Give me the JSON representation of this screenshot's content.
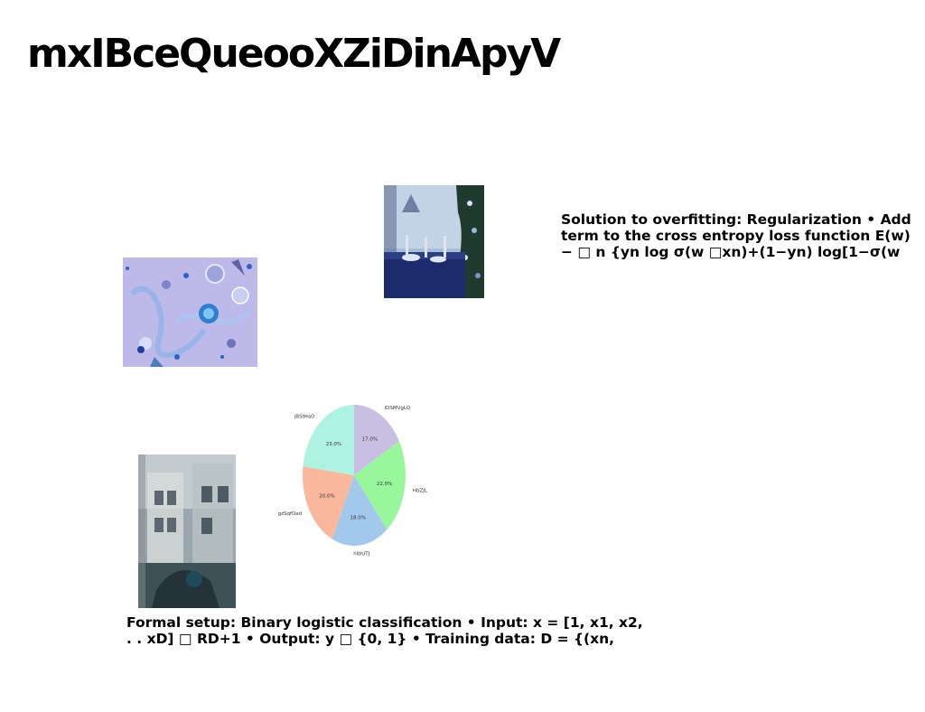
{
  "slide": {
    "title": "mxIBceQueooXZiDinApyV",
    "text_right": [
      "Solution to overfitting: Regularization • Add",
      "term to the cross entropy loss function E(w)",
      "− □ n {yn log σ(w □xn)+(1−yn) log[1−σ(w"
    ],
    "text_bottom": [
      "Formal setup: Binary logistic classification • Input: x = [1, x1, x2,",
      ". . xD] □ RD+1 • Output: y □ {0, 1} • Training data: D = {(xn,"
    ]
  },
  "images": {
    "ornaments": "photo of blue and silver Christmas ornaments on lavender background",
    "table": "photo of blue festive table setting beside a Christmas tree",
    "street": "blurred photo of a street scene with a building"
  },
  "chart_data": {
    "type": "pie",
    "categories": [
      "lDSMVgLQ",
      "HbZJL",
      "hWUTJ",
      "gzSqfOad",
      "jBStHaD"
    ],
    "values": [
      17.0,
      22.0,
      18.0,
      20.0,
      23.0
    ],
    "value_labels": [
      "17.0%",
      "22.0%",
      "18.0%",
      "20.0%",
      "23.0%"
    ],
    "colors": [
      "#c8bfe3",
      "#98f79a",
      "#a2c8ec",
      "#f9b79b",
      "#aef3e2"
    ],
    "start_angle_deg": 90,
    "direction": "clockwise",
    "title": ""
  }
}
